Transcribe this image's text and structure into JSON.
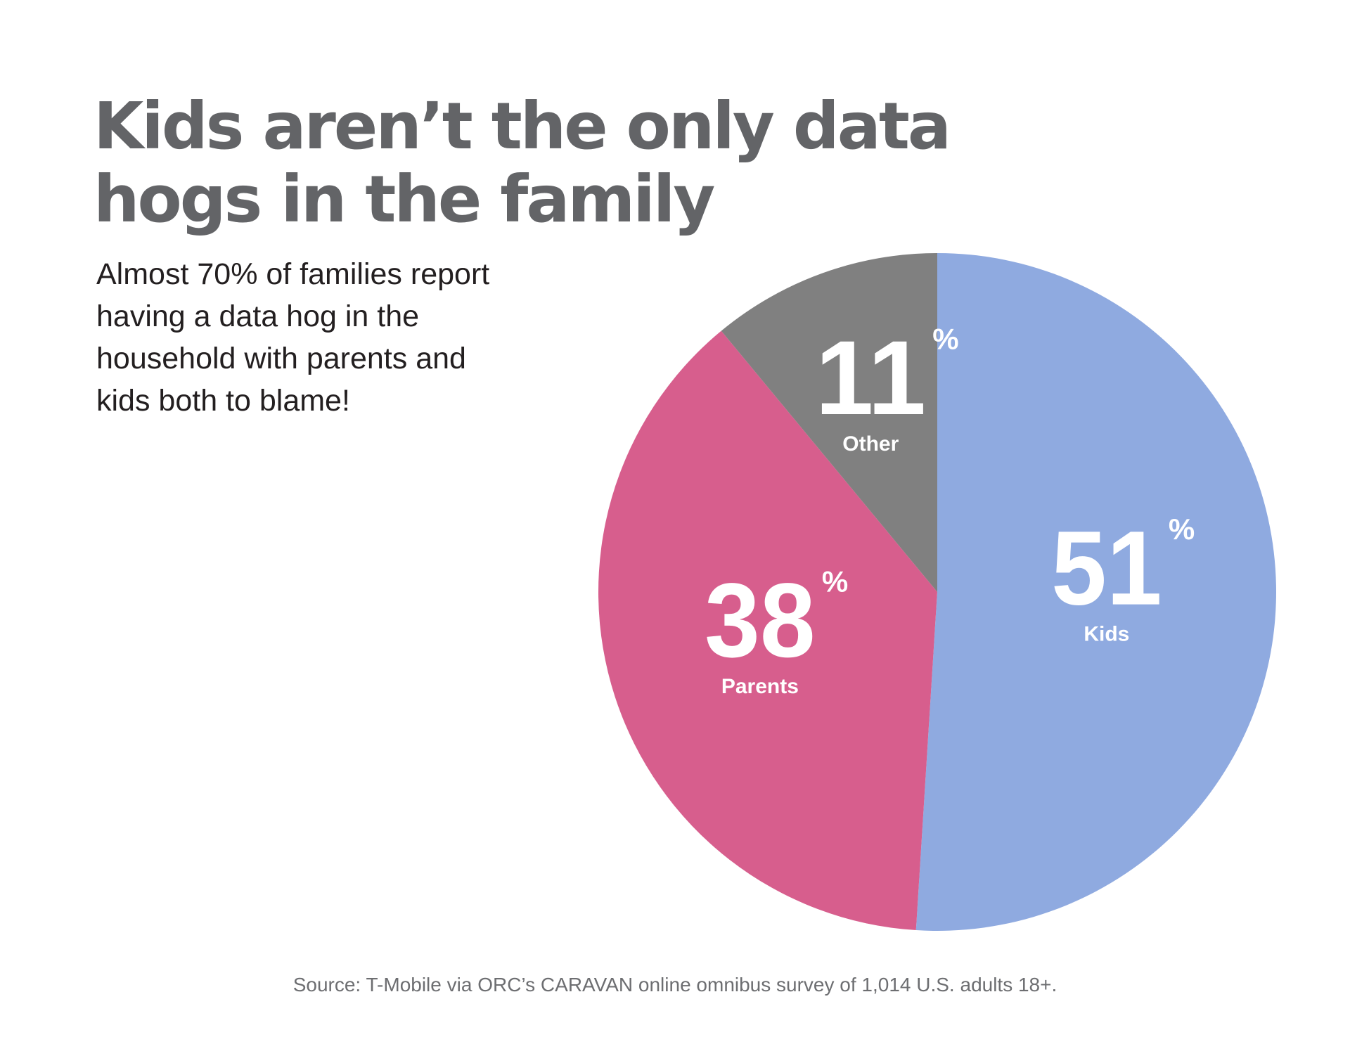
{
  "title": {
    "line1": "Kids aren’t the only data",
    "line2": "hogs in the family"
  },
  "subtitle": {
    "line1": "Almost 70% of families report",
    "line2": "having a data hog in the",
    "line3": "household with parents and",
    "line4": "kids both to blame!"
  },
  "source": "Source: T-Mobile via ORC’s CARAVAN online omnibus survey of 1,014  U.S. adults 18+.",
  "chart_data": {
    "type": "pie",
    "title": "Kids aren’t the only data hogs in the family",
    "slices": [
      {
        "label": "Kids",
        "value": 51,
        "value_text": "51",
        "unit": "%",
        "color": "#8faae0"
      },
      {
        "label": "Parents",
        "value": 38,
        "value_text": "38",
        "unit": "%",
        "color": "#d75e8d"
      },
      {
        "label": "Other",
        "value": 11,
        "value_text": "11",
        "unit": "%",
        "color": "#808080"
      }
    ],
    "start": "12 o'clock",
    "direction": "clockwise"
  }
}
